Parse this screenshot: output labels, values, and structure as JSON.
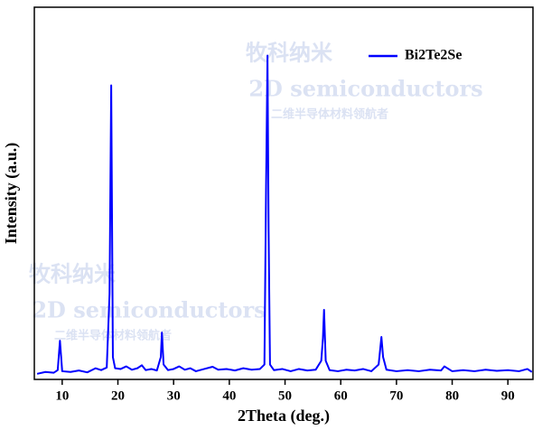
{
  "chart_data": {
    "type": "line",
    "x_label": "2Theta (deg.)",
    "y_label": "Intensity (a.u.)",
    "watermark": [
      "牧科纳米",
      "2D semiconductors",
      "二维半导体材料领航者"
    ],
    "legend": "top-right",
    "xlim": [
      5,
      94.5
    ],
    "ylim": [
      0,
      100
    ],
    "xticks": [
      10,
      20,
      30,
      40,
      50,
      60,
      70,
      80,
      90
    ],
    "x": [
      5.5,
      7,
      8.5,
      9.2,
      9.6,
      10,
      11.5,
      13,
      14.5,
      16,
      17,
      18,
      18.5,
      18.8,
      19.1,
      19.5,
      20.5,
      21.5,
      22.5,
      23.5,
      24.3,
      25,
      26,
      27,
      27.7,
      27.9,
      28.2,
      29,
      30,
      31,
      32,
      33,
      34,
      35.5,
      37,
      38,
      39.5,
      41,
      42.5,
      44,
      45.5,
      46.3,
      46.6,
      46.85,
      47.05,
      47.3,
      48,
      49.5,
      51,
      52.5,
      54,
      55.5,
      56.5,
      56.8,
      57,
      57.3,
      58,
      59.5,
      61,
      62.5,
      64,
      65.5,
      66.8,
      67.3,
      67.6,
      68.2,
      70,
      72,
      74,
      76,
      78,
      78.6,
      80,
      82,
      84,
      86,
      88,
      90,
      92,
      93.5,
      94.3
    ],
    "series": [
      {
        "name": "Bi2Te2Se",
        "color": "#0000ff",
        "values": [
          1.5,
          2,
          1.8,
          2.5,
          10.4,
          2.2,
          2,
          2.4,
          1.9,
          3,
          2.5,
          3.2,
          23,
          79,
          6,
          3,
          2.8,
          3.5,
          2.6,
          3,
          3.8,
          2.5,
          2.8,
          2.4,
          6,
          12.6,
          4,
          2.5,
          2.8,
          3.5,
          2.6,
          3,
          2.2,
          2.8,
          3.4,
          2.6,
          2.8,
          2.4,
          3,
          2.6,
          2.8,
          4,
          52,
          87,
          40,
          4,
          2.5,
          2.8,
          2.2,
          2.8,
          2.4,
          2.6,
          5,
          11,
          18.7,
          5,
          2.5,
          2.2,
          2.6,
          2.4,
          2.8,
          2.2,
          4,
          11.4,
          6,
          2.6,
          2.2,
          2.5,
          2.2,
          2.6,
          2.4,
          3.5,
          2.2,
          2.5,
          2.2,
          2.6,
          2.3,
          2.5,
          2.2,
          2.8,
          2
        ]
      }
    ]
  }
}
